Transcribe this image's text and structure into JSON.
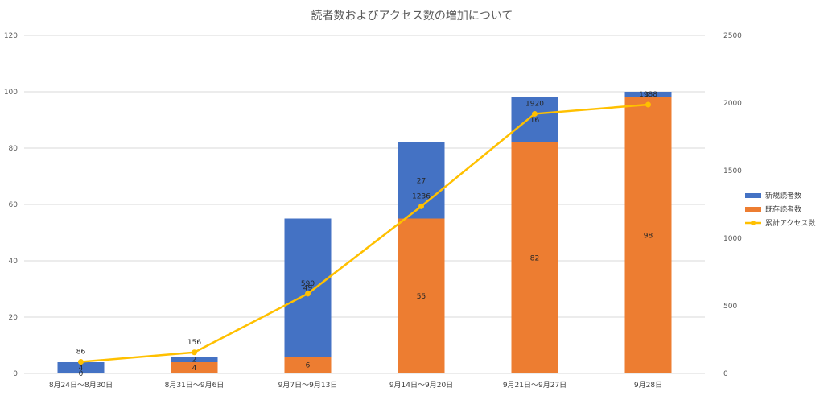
{
  "chart_data": {
    "type": "bar",
    "stacked": true,
    "title": "読者数およびアクセス数の増加について",
    "categories": [
      "8月24日～8月30日",
      "8月31日～9月6日",
      "9月7日～9月13日",
      "9月14日～9月20日",
      "9月21日～9月27日",
      "9月28日"
    ],
    "series": [
      {
        "name": "既存読者数",
        "kind": "bar",
        "axis": "left",
        "color": "#ED7D31",
        "values": [
          0,
          4,
          6,
          55,
          82,
          98
        ]
      },
      {
        "name": "新規読者数",
        "kind": "bar",
        "axis": "left",
        "color": "#4472C4",
        "values": [
          4,
          2,
          49,
          27,
          16,
          2
        ]
      },
      {
        "name": "累計アクセス数",
        "kind": "line",
        "axis": "right",
        "color": "#FFC000",
        "values": [
          86,
          156,
          590,
          1236,
          1920,
          1988
        ]
      }
    ],
    "y_left": {
      "min": 0,
      "max": 120,
      "step": 20,
      "ticks": [
        "0",
        "20",
        "40",
        "60",
        "80",
        "100",
        "120"
      ]
    },
    "y_right": {
      "min": 0,
      "max": 2500,
      "step": 500,
      "ticks": [
        "0",
        "500",
        "1000",
        "1500",
        "2000",
        "2500"
      ]
    },
    "legend": {
      "position": "right",
      "entries": [
        "新規読者数",
        "既存読者数",
        "累計アクセス数"
      ]
    },
    "grid": true
  }
}
